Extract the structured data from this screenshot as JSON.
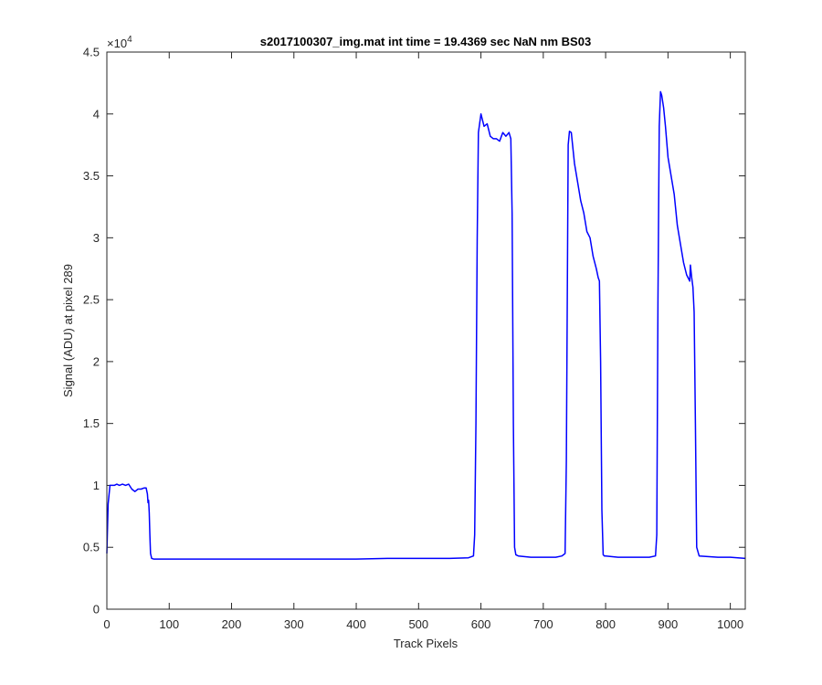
{
  "chart_data": {
    "type": "line",
    "title": "s2017100307_img.mat int time = 19.4369 sec  NaN nm BS03",
    "xlabel": "Track Pixels",
    "ylabel": "Signal (ADU) at pixel 289",
    "y_multiplier_base": "×10",
    "y_multiplier_exp": "4",
    "xlim": [
      0,
      1024
    ],
    "ylim": [
      0,
      4.5
    ],
    "x_ticks": [
      0,
      100,
      200,
      300,
      400,
      500,
      600,
      700,
      800,
      900,
      1000
    ],
    "x_tick_labels": [
      "0",
      "100",
      "200",
      "300",
      "400",
      "500",
      "600",
      "700",
      "800",
      "900",
      "1000"
    ],
    "y_ticks": [
      0,
      0.5,
      1,
      1.5,
      2,
      2.5,
      3,
      3.5,
      4,
      4.5
    ],
    "y_tick_labels": [
      "0",
      "0.5",
      "1",
      "1.5",
      "2",
      "2.5",
      "3",
      "3.5",
      "4",
      "4.5"
    ],
    "grid": false,
    "line_color": "#0000ff",
    "series": [
      {
        "x": [
          0,
          2,
          5,
          8,
          12,
          16,
          20,
          25,
          30,
          35,
          40,
          45,
          50,
          55,
          60,
          63,
          65,
          66,
          67,
          68,
          69,
          70,
          72,
          75,
          80,
          100,
          150,
          200,
          250,
          300,
          350,
          400,
          450,
          500,
          550,
          580,
          588,
          590,
          592,
          594,
          596,
          600,
          605,
          610,
          615,
          620,
          625,
          630,
          635,
          640,
          645,
          648,
          650,
          652,
          654,
          656,
          660,
          680,
          700,
          720,
          730,
          735,
          737,
          739,
          740,
          742,
          745,
          748,
          750,
          755,
          760,
          765,
          770,
          775,
          780,
          785,
          788,
          790,
          792,
          794,
          796,
          798,
          800,
          820,
          850,
          870,
          880,
          882,
          884,
          886,
          888,
          890,
          893,
          896,
          900,
          905,
          910,
          915,
          920,
          925,
          930,
          935,
          936,
          938,
          940,
          942,
          944,
          946,
          950,
          980,
          1000,
          1024
        ],
        "y": [
          0.45,
          0.85,
          1.0,
          1.0,
          1.0,
          1.01,
          1.0,
          1.01,
          1.0,
          1.01,
          0.97,
          0.95,
          0.97,
          0.97,
          0.98,
          0.98,
          0.93,
          0.86,
          0.88,
          0.78,
          0.6,
          0.45,
          0.41,
          0.405,
          0.405,
          0.405,
          0.405,
          0.405,
          0.405,
          0.405,
          0.405,
          0.405,
          0.41,
          0.41,
          0.41,
          0.415,
          0.43,
          0.6,
          1.5,
          3.0,
          3.85,
          4.0,
          3.9,
          3.92,
          3.82,
          3.8,
          3.8,
          3.78,
          3.85,
          3.82,
          3.85,
          3.8,
          3.2,
          1.5,
          0.5,
          0.44,
          0.43,
          0.42,
          0.42,
          0.42,
          0.43,
          0.45,
          1.2,
          3.0,
          3.75,
          3.86,
          3.85,
          3.7,
          3.6,
          3.45,
          3.3,
          3.2,
          3.05,
          3.0,
          2.85,
          2.75,
          2.68,
          2.65,
          2.0,
          0.8,
          0.44,
          0.43,
          0.43,
          0.42,
          0.42,
          0.42,
          0.43,
          0.6,
          2.5,
          3.9,
          4.18,
          4.15,
          4.05,
          3.9,
          3.65,
          3.5,
          3.35,
          3.1,
          2.95,
          2.8,
          2.7,
          2.65,
          2.78,
          2.68,
          2.6,
          2.4,
          1.5,
          0.5,
          0.43,
          0.42,
          0.42,
          0.41
        ]
      }
    ]
  }
}
